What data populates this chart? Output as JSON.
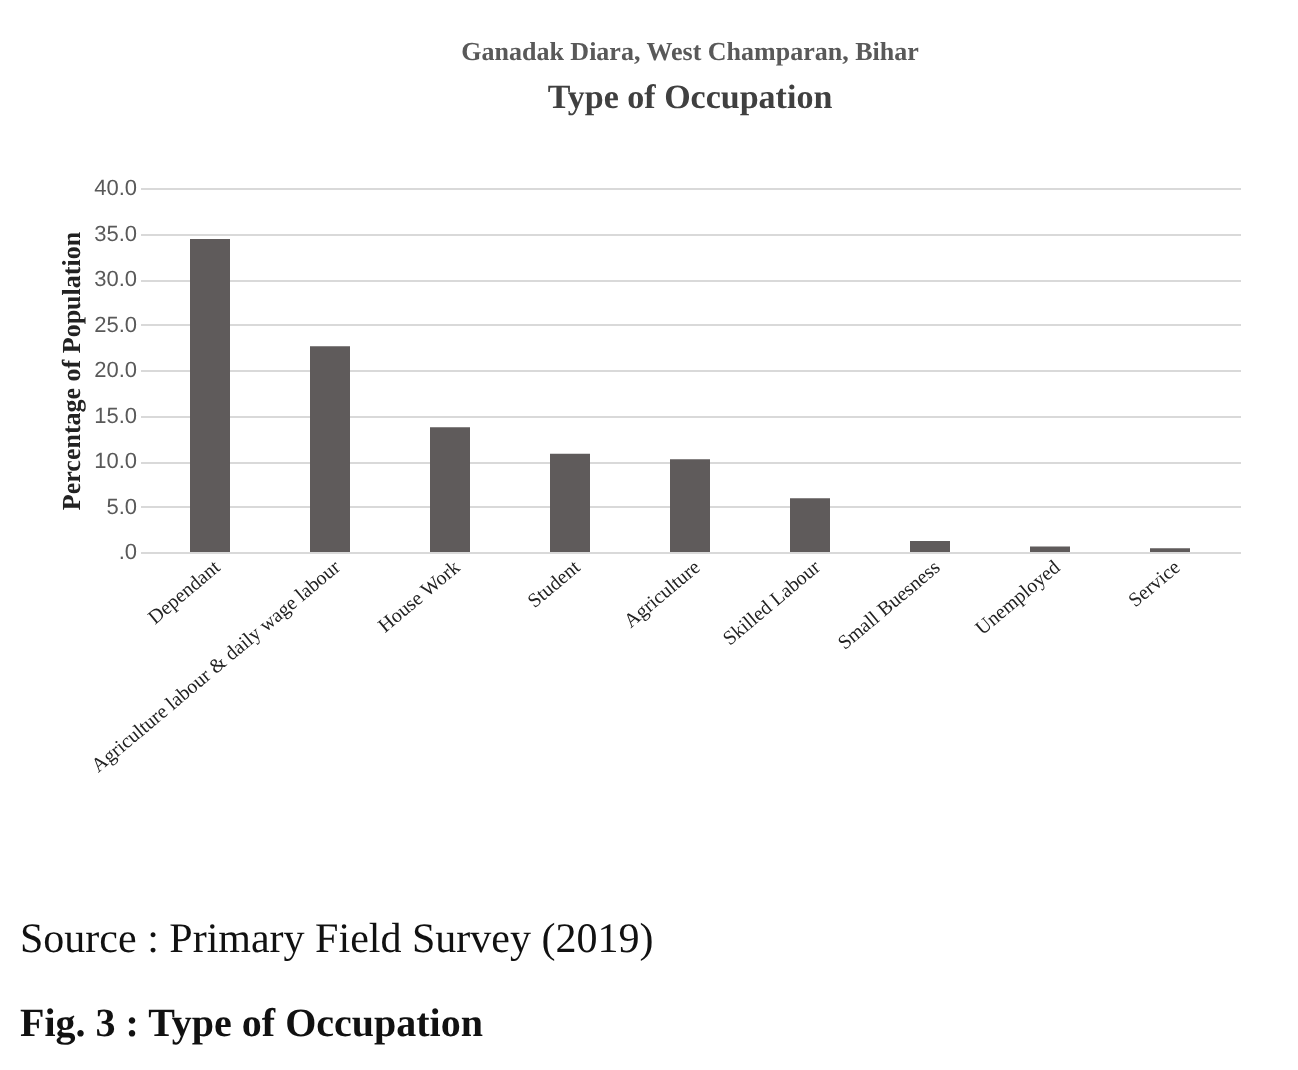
{
  "chart_data": {
    "type": "bar",
    "subtitle": "Ganadak Diara, West Champaran, Bihar",
    "title": "Type of Occupation",
    "ylabel": "Percentage of Population",
    "categories": [
      "Dependant",
      "Agriculture labour & daily wage labour",
      "House Work",
      "Student",
      "Agriculture",
      "Skilled Labour",
      "Small Buesness",
      "Unemployed",
      "Service"
    ],
    "values": [
      34.4,
      22.6,
      13.7,
      10.8,
      10.2,
      5.9,
      1.2,
      0.6,
      0.4
    ],
    "color": "#5f5b5b",
    "ylim": [
      0,
      40
    ],
    "yticks": [
      {
        "value": 0,
        "label": ".0"
      },
      {
        "value": 5,
        "label": "5.0"
      },
      {
        "value": 10,
        "label": "10.0"
      },
      {
        "value": 15,
        "label": "15.0"
      },
      {
        "value": 20,
        "label": "20.0"
      },
      {
        "value": 25,
        "label": "25.0"
      },
      {
        "value": 30,
        "label": "30.0"
      },
      {
        "value": 35,
        "label": "35.0"
      },
      {
        "value": 40,
        "label": "40.0"
      }
    ],
    "grid": "y",
    "annotations": [
      "Source : Primary Field Survey (2019)",
      "Fig. 3 : Type of Occupation"
    ]
  }
}
